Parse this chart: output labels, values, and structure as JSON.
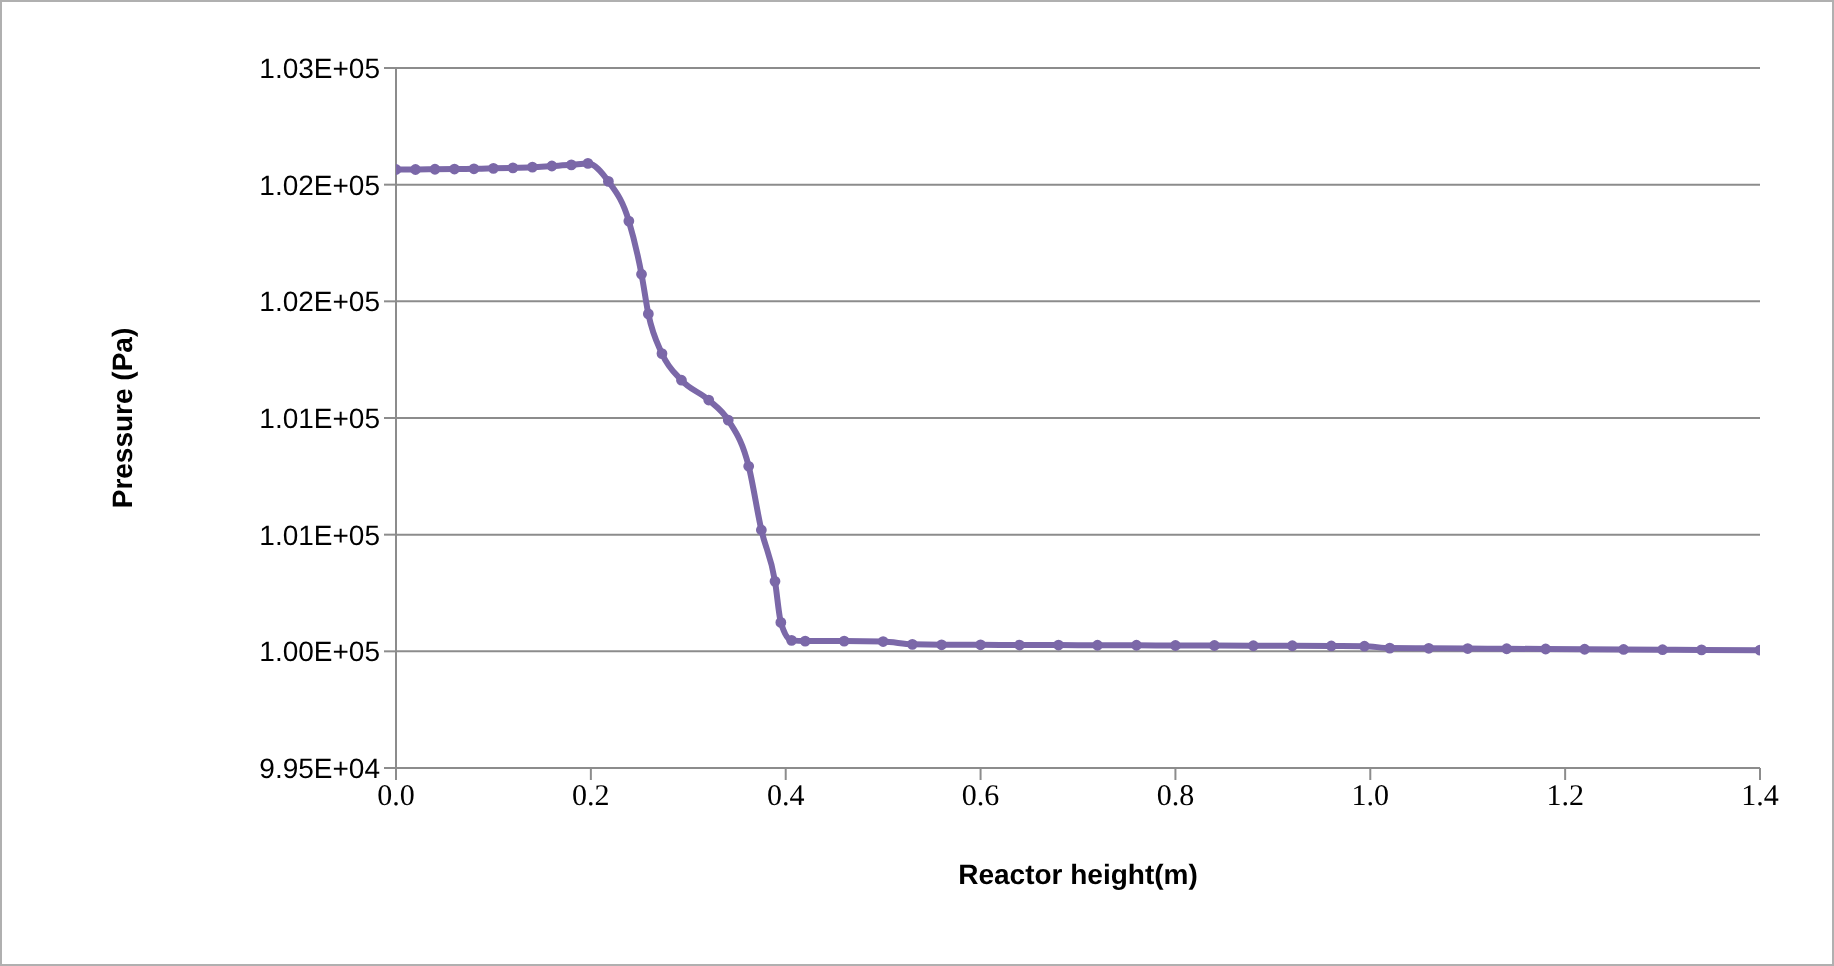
{
  "chart_data": {
    "type": "line",
    "xlabel": "Reactor height(m)",
    "ylabel": "Pressure (Pa)",
    "x": [
      0,
      0.02,
      0.04,
      0.06,
      0.08,
      0.1,
      0.12,
      0.14,
      0.16,
      0.18,
      0.197,
      0.218,
      0.239,
      0.252,
      0.259,
      0.273,
      0.293,
      0.321,
      0.341,
      0.362,
      0.375,
      0.389,
      0.395,
      0.406,
      0.42,
      0.46,
      0.5,
      0.53,
      0.56,
      0.6,
      0.64,
      0.68,
      0.72,
      0.76,
      0.8,
      0.84,
      0.88,
      0.92,
      0.96,
      0.994,
      1.02,
      1.06,
      1.1,
      1.14,
      1.18,
      1.22,
      1.26,
      1.3,
      1.34,
      1.4
    ],
    "series": [
      {
        "color": "#7b68a8",
        "values": [
          102065,
          102065,
          102066,
          102067,
          102068,
          102070,
          102072,
          102075,
          102080,
          102085,
          102091,
          102014,
          101844,
          101616,
          101446,
          101276,
          101162,
          101077,
          100991,
          100793,
          100520,
          100300,
          100124,
          100047,
          100044,
          100044,
          100042,
          100030,
          100028,
          100028,
          100027,
          100027,
          100026,
          100026,
          100025,
          100025,
          100024,
          100024,
          100023,
          100022,
          100014,
          100013,
          100012,
          100011,
          100010,
          100009,
          100008,
          100007,
          100006,
          100005
        ]
      }
    ],
    "xlim": [
      0,
      1.4
    ],
    "xticks": [
      {
        "value": 0,
        "label": "0.0"
      },
      0.2,
      0.4,
      0.6,
      0.8,
      {
        "value": 1,
        "label": "1.0"
      },
      1.2,
      1.4
    ],
    "ylim": [
      99500,
      102500
    ],
    "yticks": [
      {
        "value": 99500,
        "label": "9.95E+04"
      },
      {
        "value": 100000,
        "label": "1.00E+05"
      },
      {
        "value": 100500,
        "label": "1.01E+05"
      },
      {
        "value": 101000,
        "label": "1.01E+05"
      },
      {
        "value": 101500,
        "label": "1.02E+05"
      },
      {
        "value": 102000,
        "label": "1.02E+05"
      },
      {
        "value": 102500,
        "label": "1.03E+05"
      }
    ],
    "grid": "y",
    "marker": "circle",
    "line_style": "solid"
  }
}
